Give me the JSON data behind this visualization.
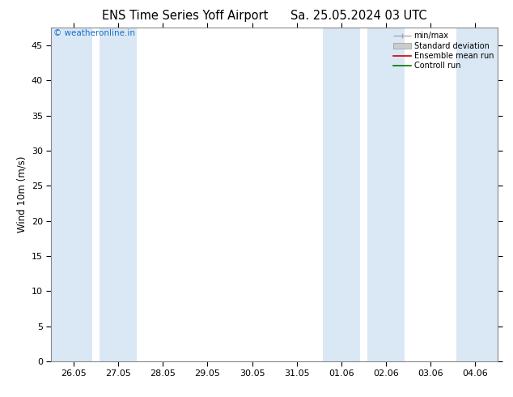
{
  "title_left": "ENS Time Series Yoff Airport",
  "title_right": "Sa. 25.05.2024 03 UTC",
  "ylabel": "Wind 10m (m/s)",
  "ylim": [
    0,
    47.5
  ],
  "yticks": [
    0,
    5,
    10,
    15,
    20,
    25,
    30,
    35,
    40,
    45
  ],
  "background_color": "#ffffff",
  "plot_bg_color": "#ffffff",
  "band_color": "#dae8f5",
  "copyright_text": "© weatheronline.in",
  "copyright_color": "#1a6ecc",
  "legend_labels": [
    "min/max",
    "Standard deviation",
    "Ensemble mean run",
    "Controll run"
  ],
  "legend_colors_line": [
    "#aaaaaa",
    "#cccccc",
    "#cc0000",
    "#007700"
  ],
  "x_labels": [
    "26.05",
    "27.05",
    "28.05",
    "29.05",
    "30.05",
    "31.05",
    "01.06",
    "02.06",
    "03.06",
    "04.06"
  ],
  "num_days": 10,
  "title_fontsize": 10.5,
  "axis_fontsize": 8.5,
  "tick_fontsize": 8.0,
  "band_xranges": [
    [
      -0.5,
      0.42
    ],
    [
      0.58,
      1.42
    ],
    [
      5.58,
      6.42
    ],
    [
      6.58,
      7.42
    ],
    [
      8.58,
      9.5
    ]
  ],
  "x_positions": [
    0,
    1,
    2,
    3,
    4,
    5,
    6,
    7,
    8,
    9
  ]
}
